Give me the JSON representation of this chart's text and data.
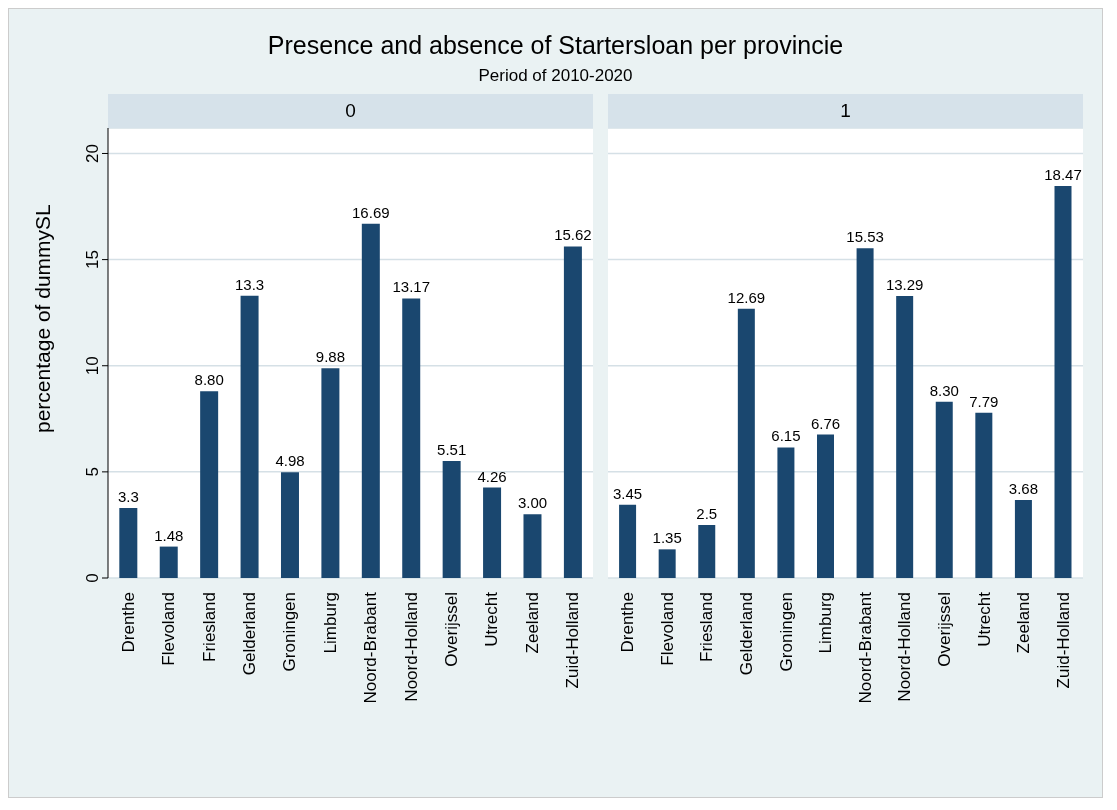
{
  "chart_data": [
    {
      "type": "bar",
      "title": "0",
      "annotations": [
        "Presence and absence of Startersloan per provincie",
        "Period of 2010-2020"
      ],
      "ylabel": "percentage of dummySL",
      "categories": [
        "Drenthe",
        "Flevoland",
        "Friesland",
        "Gelderland",
        "Groningen",
        "Limburg",
        "Noord-Brabant",
        "Noord-Holland",
        "Overijssel",
        "Utrecht",
        "Zeeland",
        "Zuid-Holland"
      ],
      "values": [
        3.3,
        1.48,
        8.8,
        13.3,
        4.98,
        9.88,
        16.69,
        13.17,
        5.51,
        4.26,
        3.0,
        15.62
      ],
      "value_labels": [
        "3.3",
        "1.48",
        "8.80",
        "13.3",
        "4.98",
        "9.88",
        "16.69",
        "13.17",
        "5.51",
        "4.26",
        "3.00",
        "15.62"
      ],
      "color": "#1a476f",
      "ylim": [
        0,
        21.2
      ],
      "yticks": [
        0,
        5,
        10,
        15,
        20
      ],
      "grid": "y",
      "legend": false
    },
    {
      "type": "bar",
      "title": "1",
      "categories": [
        "Drenthe",
        "Flevoland",
        "Friesland",
        "Gelderland",
        "Groningen",
        "Limburg",
        "Noord-Brabant",
        "Noord-Holland",
        "Overijssel",
        "Utrecht",
        "Zeeland",
        "Zuid-Holland"
      ],
      "values": [
        3.45,
        1.35,
        2.5,
        12.69,
        6.15,
        6.76,
        15.53,
        13.29,
        8.3,
        7.79,
        3.68,
        18.47
      ],
      "value_labels": [
        "3.45",
        "1.35",
        "2.5",
        "12.69",
        "6.15",
        "6.76",
        "15.53",
        "13.29",
        "8.30",
        "7.79",
        "3.68",
        "18.47"
      ],
      "color": "#1a476f",
      "ylim": [
        0,
        21.2
      ],
      "yticks": [
        0,
        5,
        10,
        15,
        20
      ],
      "grid": "y",
      "legend": false,
      "tick_labels": "x"
    }
  ]
}
